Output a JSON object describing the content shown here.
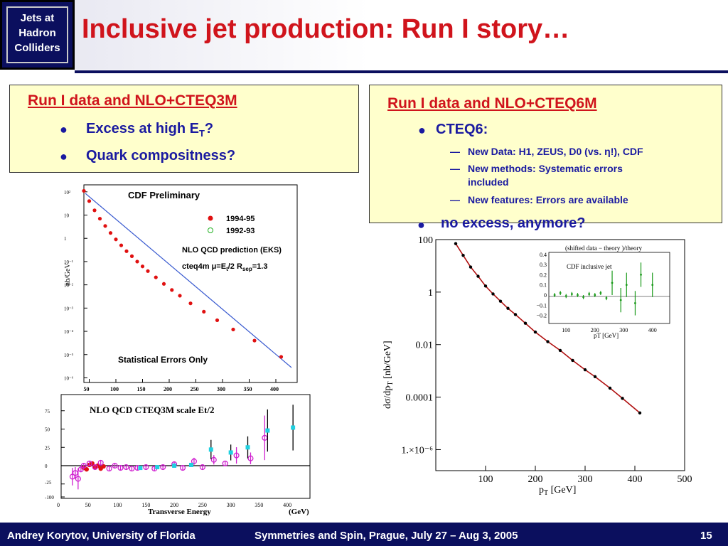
{
  "header": {
    "logo_lines": [
      "Jets at",
      "Hadron",
      "Colliders"
    ],
    "title": "Inclusive jet production: Run I story…"
  },
  "left_panel": {
    "heading": "Run I data and NLO+CTEQ3M",
    "bullets": [
      "Excess at high E",
      "Quark compositness?"
    ],
    "bullet1_sub": "T",
    "bullet1_suffix": "?"
  },
  "right_panel": {
    "heading": "Run I data and NLO+CTEQ6M",
    "bullet1": "CTEQ6:",
    "subitems": [
      "New Data:  H1, ZEUS, D0 (vs. η!), CDF",
      "New methods: Systematic errors",
      "included",
      "New features: Errors are available"
    ],
    "bullet2": "no excess, anymore?"
  },
  "chart_data": [
    {
      "type": "scatter",
      "title": "CDF Preliminary",
      "ylabel": "nb/GeV",
      "log_y": true,
      "x_ticks": [
        "50",
        "100",
        "150",
        "200",
        "250",
        "300",
        "350",
        "400"
      ],
      "y_ticks": [
        "10²",
        "10",
        "1",
        "10⁻¹",
        "10⁻²",
        "10⁻³",
        "10⁻⁴",
        "10⁻⁵",
        "10⁻⁶"
      ],
      "legend": [
        "1994-95",
        "1992-93"
      ],
      "annotations": [
        "NLO QCD prediction (EKS)",
        "cteq4m  μ=E",
        "t",
        "/2  R",
        "sep",
        "=1.3",
        "Statistical Errors Only"
      ],
      "xlim": [
        40,
        440
      ],
      "series": [
        {
          "name": "1994-95",
          "x": [
            40,
            50,
            60,
            70,
            80,
            90,
            100,
            110,
            120,
            130,
            140,
            150,
            160,
            175,
            190,
            205,
            220,
            240,
            265,
            290,
            320,
            360,
            410
          ],
          "y": [
            110,
            40,
            16,
            7,
            3.4,
            1.7,
            0.9,
            0.5,
            0.28,
            0.17,
            0.1,
            0.062,
            0.039,
            0.021,
            0.011,
            0.006,
            0.0034,
            0.0016,
            0.0007,
            0.0003,
            0.00012,
            4e-05,
            8e-06
          ]
        }
      ]
    },
    {
      "type": "scatter",
      "title": "NLO QCD CTEQ3M  scale Et/2",
      "xlabel": "Transverse Energy",
      "xunit": "(GeV)",
      "x_ticks": [
        "0",
        "50",
        "100",
        "150",
        "200",
        "250",
        "300",
        "350",
        "400"
      ],
      "y_ticks": [
        "75",
        "50",
        "25",
        "0",
        "-25",
        "-100"
      ],
      "series": [
        {
          "name": "1994-95",
          "x": [
            40,
            45,
            50,
            55,
            60,
            65,
            70,
            75
          ],
          "y": [
            -3,
            -5,
            1,
            3,
            -2,
            0,
            -4,
            -1
          ]
        },
        {
          "name": "1992-93",
          "x": [
            20,
            25,
            30,
            35,
            40,
            50,
            60,
            70,
            85,
            95,
            105,
            115,
            125,
            135,
            150,
            165,
            180,
            200,
            215,
            235,
            250,
            270,
            290,
            310,
            335,
            360
          ],
          "y": [
            -15,
            -10,
            -18,
            -5,
            0,
            3,
            -2,
            4,
            -4,
            0,
            -3,
            -2,
            -4,
            -3,
            -2,
            -4,
            -2,
            2,
            -3,
            6,
            -2,
            8,
            3,
            14,
            10,
            38
          ]
        },
        {
          "name": "1994-95-cyan",
          "x": [
            140,
            170,
            200,
            230,
            265,
            300,
            330,
            365,
            410
          ],
          "y": [
            -3,
            -2,
            0,
            1,
            22,
            18,
            25,
            48,
            52
          ]
        }
      ]
    },
    {
      "type": "line",
      "xlabel": "p",
      "xlabel_sub": "T",
      "xlabel_suffix": " [GeV]",
      "ylabel": "dσ/dp",
      "ylabel_sub": "T",
      "ylabel_suffix": " [nb/GeV]",
      "log_y": true,
      "x_ticks": [
        "100",
        "200",
        "300",
        "400",
        "500"
      ],
      "y_ticks": [
        "100",
        "1",
        "0.01",
        "0.0001",
        "1.×10⁻⁶"
      ],
      "xlim": [
        0,
        500
      ],
      "points": [
        [
          40,
          70
        ],
        [
          55,
          25
        ],
        [
          70,
          9
        ],
        [
          85,
          4
        ],
        [
          100,
          1.7
        ],
        [
          115,
          0.85
        ],
        [
          130,
          0.45
        ],
        [
          145,
          0.24
        ],
        [
          160,
          0.14
        ],
        [
          180,
          0.065
        ],
        [
          200,
          0.03
        ],
        [
          225,
          0.013
        ],
        [
          250,
          0.006
        ],
        [
          275,
          0.0025
        ],
        [
          300,
          0.0011
        ],
        [
          320,
          0.0006
        ],
        [
          350,
          0.00022
        ],
        [
          375,
          9e-05
        ],
        [
          410,
          2.5e-05
        ]
      ],
      "inset": {
        "title": "(shifted data − theory )/theory",
        "label": "CDF inclusive jet",
        "xlabel": "pT [GeV]",
        "x_ticks": [
          "100",
          "200",
          "300",
          "400"
        ],
        "y_ticks": [
          "0.4",
          "0.3",
          "0.2",
          "0.1",
          "0",
          "−0.1",
          "−0.2"
        ],
        "x": [
          60,
          80,
          100,
          120,
          140,
          160,
          180,
          200,
          220,
          240,
          260,
          290,
          310,
          340,
          360,
          400
        ],
        "y": [
          0,
          0.02,
          -0.01,
          0.01,
          0,
          -0.02,
          0.01,
          0,
          0.02,
          -0.03,
          0.12,
          -0.05,
          0.1,
          -0.08,
          0.2,
          0.1
        ]
      }
    }
  ],
  "footer": {
    "left": "Andrey Korytov, University of Florida",
    "center": "Symmetries and Spin, Prague, July 27 – Aug 3, 2005",
    "page": "15"
  }
}
